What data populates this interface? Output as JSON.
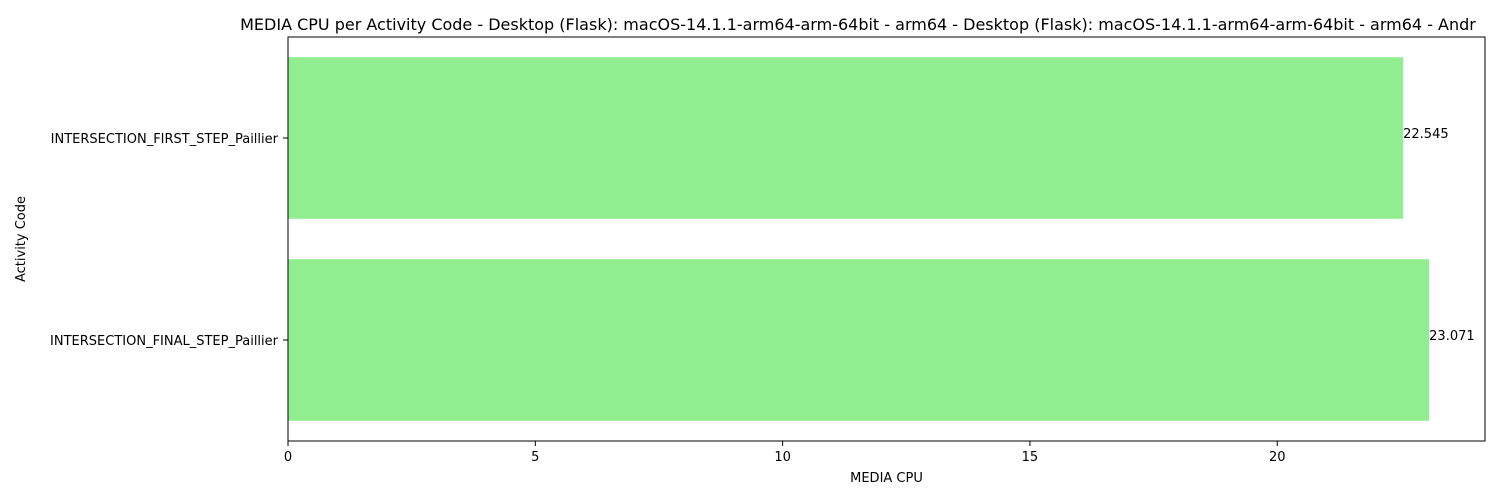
{
  "chart_data": {
    "type": "bar",
    "orientation": "horizontal",
    "title": "MEDIA CPU per Activity Code - Desktop (Flask): macOS-14.1.1-arm64-arm-64bit - arm64 - Desktop (Flask): macOS-14.1.1-arm64-arm-64bit - arm64 - Andr",
    "xlabel": "MEDIA CPU",
    "ylabel": "Activity Code",
    "categories": [
      "INTERSECTION_FIRST_STEP_Paillier",
      "INTERSECTION_FINAL_STEP_Paillier"
    ],
    "values": [
      22.545,
      23.071
    ],
    "data_labels": [
      "22.545",
      "23.071"
    ],
    "xlim": [
      0,
      24.2
    ],
    "xticks": [
      0,
      5,
      10,
      15,
      20
    ],
    "xtick_labels": [
      "0",
      "5",
      "10",
      "15",
      "20"
    ],
    "grid": false,
    "bar_color": "#90EE90"
  }
}
